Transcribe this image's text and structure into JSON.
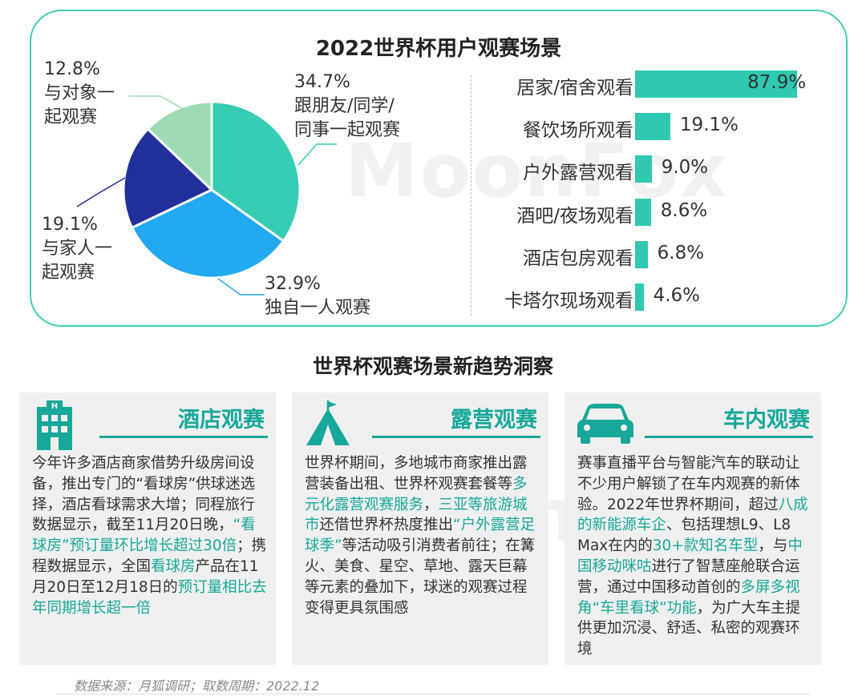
{
  "chart_data": [
    {
      "type": "pie",
      "title": "2022世界杯用户观赛场景",
      "slices": [
        {
          "label": "跟朋友/同学/\n同事一起观赛",
          "value": 34.7,
          "value_label": "34.7%",
          "color": "#36cdb4"
        },
        {
          "label": "独自一人观赛",
          "value": 32.9,
          "value_label": "32.9%",
          "color": "#22a9f0"
        },
        {
          "label": "与家人一\n起观赛",
          "value": 19.1,
          "value_label": "19.1%",
          "color": "#202f9a"
        },
        {
          "label": "与对象一\n起观赛",
          "value": 12.8,
          "value_label": "12.8%",
          "color": "#9ddcb2"
        }
      ]
    },
    {
      "type": "bar",
      "orientation": "horizontal",
      "categories": [
        "居家/宿舍观看",
        "餐饮场所观看",
        "户外露营观看",
        "酒吧/夜场观看",
        "酒店包房观看",
        "卡塔尔现场观看"
      ],
      "values": [
        87.9,
        19.1,
        9.0,
        8.6,
        6.8,
        4.6
      ],
      "value_labels": [
        "87.9%",
        "19.1%",
        "9.0%",
        "8.6%",
        "6.8%",
        "4.6%"
      ],
      "xlim": [
        0,
        100
      ],
      "color": "#2fc8b0",
      "grid": false
    }
  ],
  "watermark": "MoonFox",
  "section_title": "世界杯观赛场景新趋势洞察",
  "cards": [
    {
      "heading": "酒店观赛",
      "icon": "hotel-building-icon",
      "text": [
        {
          "t": "今年许多酒店商家借势升级房间设备，推出专门的“看球房”供球迷选择，酒店看球需求大增；同程旅行数据显示，截至11月20日晚，",
          "hl": false
        },
        {
          "t": "“看球房”预订量环比增长超过30倍",
          "hl": true
        },
        {
          "t": "；携程数据显示，全国",
          "hl": false
        },
        {
          "t": "看球房",
          "hl": true
        },
        {
          "t": "产品在11月20日至12月18日的",
          "hl": false
        },
        {
          "t": "预订量相比去年同期增长超一倍",
          "hl": true
        }
      ]
    },
    {
      "heading": "露营观赛",
      "icon": "camping-tent-icon",
      "text": [
        {
          "t": "世界杯期间，多地城市商家推出露营装备出租、世界杯观赛套餐等",
          "hl": false
        },
        {
          "t": "多元化露营观赛服务",
          "hl": true
        },
        {
          "t": "，",
          "hl": false
        },
        {
          "t": "三亚等旅游城市",
          "hl": true
        },
        {
          "t": "还借世界杯热度推出",
          "hl": false
        },
        {
          "t": "“户外露营足球季”",
          "hl": true
        },
        {
          "t": "等活动吸引消费者前往；在篝火、美食、星空、草地、露天巨幕等元素的叠加下，球迷的观赛过程变得更具氛围感",
          "hl": false
        }
      ]
    },
    {
      "heading": "车内观赛",
      "icon": "car-icon",
      "text": [
        {
          "t": "赛事直播平台与智能汽车的联动让不少用户解锁了在车内观赛的新体验。2022年世界杯期间，超过",
          "hl": false
        },
        {
          "t": "八成的新能源车企",
          "hl": true
        },
        {
          "t": "、包括理想L9、L8 Max在内的",
          "hl": false
        },
        {
          "t": "30+款知名车型",
          "hl": true
        },
        {
          "t": "，与",
          "hl": false
        },
        {
          "t": "中国移动咪咕",
          "hl": true
        },
        {
          "t": "进行了智慧座舱联合运营，通过中国移动首创的",
          "hl": false
        },
        {
          "t": "多屏多视角“车里看球”功能",
          "hl": true
        },
        {
          "t": "，为广大车主提供更加沉浸、舒适、私密的观赛环境",
          "hl": false
        }
      ]
    }
  ],
  "source": "数据来源：月狐调研；取数周期：2022.12"
}
